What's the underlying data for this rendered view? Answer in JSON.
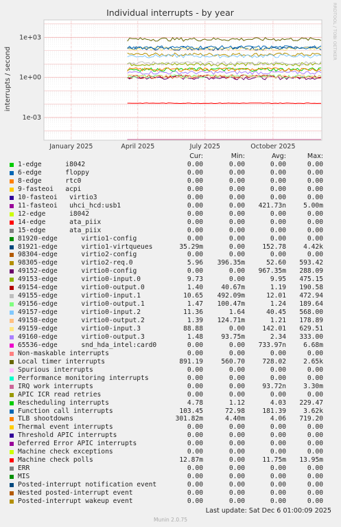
{
  "chart_data": {
    "type": "line",
    "title": "Individual interrupts - by year",
    "ylabel": "interrupts / second",
    "yscale": "log",
    "ylim": [
      2e-05,
      20000
    ],
    "yticks": [
      "1e-03",
      "1e+00",
      "1e+03"
    ],
    "ytick_values": [
      0.001,
      1,
      1000
    ],
    "xticks": [
      "January 2025",
      "April 2025",
      "July 2025",
      "October 2025"
    ],
    "xtick_positions": [
      "2025-01-01",
      "2025-04-01",
      "2025-07-01",
      "2025-10-01"
    ],
    "xlim": [
      "2024-11-25",
      "2025-12-06"
    ],
    "data_start": "2025-03-18",
    "grid": true,
    "legend_position": "bottom"
  },
  "legend_header": {
    "cur": "Cur:",
    "min": "Min:",
    "avg": "Avg:",
    "max": "Max:"
  },
  "series": [
    {
      "name": "1-edge      i8042",
      "color": "#00cc00",
      "cur": "0.00",
      "min": "0.00",
      "avg": "0.00",
      "max": "0.00"
    },
    {
      "name": "6-edge      floppy",
      "color": "#0066b3",
      "cur": "0.00",
      "min": "0.00",
      "avg": "0.00",
      "max": "0.00"
    },
    {
      "name": "8-edge      rtc0",
      "color": "#ff8000",
      "cur": "0.00",
      "min": "0.00",
      "avg": "0.00",
      "max": "0.00"
    },
    {
      "name": "9-fasteoi   acpi",
      "color": "#ffcc00",
      "cur": "0.00",
      "min": "0.00",
      "avg": "0.00",
      "max": "0.00"
    },
    {
      "name": "10-fasteoi   virtio3",
      "color": "#330099",
      "cur": "0.00",
      "min": "0.00",
      "avg": "0.00",
      "max": "0.00"
    },
    {
      "name": "11-fasteoi   uhci_hcd:usb1",
      "color": "#990099",
      "cur": "0.00",
      "min": "0.00",
      "avg": "421.73n",
      "max": "5.00m"
    },
    {
      "name": "12-edge      i8042",
      "color": "#ccff00",
      "cur": "0.00",
      "min": "0.00",
      "avg": "0.00",
      "max": "0.00"
    },
    {
      "name": "14-edge      ata_piix",
      "color": "#ff0000",
      "cur": "0.00",
      "min": "0.00",
      "avg": "0.00",
      "max": "0.00"
    },
    {
      "name": "15-edge      ata_piix",
      "color": "#808080",
      "cur": "0.00",
      "min": "0.00",
      "avg": "0.00",
      "max": "0.00"
    },
    {
      "name": "81920-edge      virtio1-config",
      "color": "#008f00",
      "cur": "0.00",
      "min": "0.00",
      "avg": "0.00",
      "max": "0.00"
    },
    {
      "name": "81921-edge      virtio1-virtqueues",
      "color": "#00487d",
      "cur": "35.29m",
      "min": "0.00",
      "avg": "152.78",
      "max": "4.42k"
    },
    {
      "name": "98304-edge      virtio2-config",
      "color": "#b35a00",
      "cur": "0.00",
      "min": "0.00",
      "avg": "0.00",
      "max": "0.00"
    },
    {
      "name": "98305-edge      virtio2-req.0",
      "color": "#b38f00",
      "cur": "5.96",
      "min": "396.35m",
      "avg": "52.60",
      "max": "593.42"
    },
    {
      "name": "49152-edge      virtio0-config",
      "color": "#6b006b",
      "cur": "0.00",
      "min": "0.00",
      "avg": "967.35m",
      "max": "288.09"
    },
    {
      "name": "49153-edge      virtio0-input.0",
      "color": "#8fb300",
      "cur": "9.73",
      "min": "0.00",
      "avg": "9.95",
      "max": "475.15"
    },
    {
      "name": "49154-edge      virtio0-output.0",
      "color": "#b30000",
      "cur": "1.40",
      "min": "40.67m",
      "avg": "1.19",
      "max": "190.58"
    },
    {
      "name": "49155-edge      virtio0-input.1",
      "color": "#bebebe",
      "cur": "10.65",
      "min": "492.09m",
      "avg": "12.01",
      "max": "472.94"
    },
    {
      "name": "49156-edge      virtio0-output.1",
      "color": "#80ff80",
      "cur": "1.47",
      "min": "100.47m",
      "avg": "1.24",
      "max": "189.64"
    },
    {
      "name": "49157-edge      virtio0-input.2",
      "color": "#80c9ff",
      "cur": "11.36",
      "min": "1.64",
      "avg": "40.45",
      "max": "568.00"
    },
    {
      "name": "49158-edge      virtio0-output.2",
      "color": "#ffc080",
      "cur": "1.39",
      "min": "124.71m",
      "avg": "1.21",
      "max": "178.89"
    },
    {
      "name": "49159-edge      virtio0-input.3",
      "color": "#ffe680",
      "cur": "88.88",
      "min": "0.00",
      "avg": "142.01",
      "max": "629.51"
    },
    {
      "name": "49160-edge      virtio0-output.3",
      "color": "#aa80ff",
      "cur": "1.48",
      "min": "93.75m",
      "avg": "2.34",
      "max": "333.00"
    },
    {
      "name": "65536-edge      snd_hda_intel:card0",
      "color": "#ee00cc",
      "cur": "0.00",
      "min": "0.00",
      "avg": "733.97n",
      "max": "6.68m"
    },
    {
      "name": "Non-maskable interrupts",
      "color": "#ff8080",
      "cur": "0.00",
      "min": "0.00",
      "avg": "0.00",
      "max": "0.00"
    },
    {
      "name": "Local timer interrupts",
      "color": "#666600",
      "cur": "891.19",
      "min": "560.70",
      "avg": "728.02",
      "max": "2.65k"
    },
    {
      "name": "Spurious interrupts",
      "color": "#ffbfff",
      "cur": "0.00",
      "min": "0.00",
      "avg": "0.00",
      "max": "0.00"
    },
    {
      "name": "Performance monitoring interrupts",
      "color": "#00ffcc",
      "cur": "0.00",
      "min": "0.00",
      "avg": "0.00",
      "max": "0.00"
    },
    {
      "name": "IRQ work interrupts",
      "color": "#cc6699",
      "cur": "0.00",
      "min": "0.00",
      "avg": "93.72n",
      "max": "3.30m"
    },
    {
      "name": "APIC ICR read retries",
      "color": "#999900",
      "cur": "0.00",
      "min": "0.00",
      "avg": "0.00",
      "max": "0.00"
    },
    {
      "name": "Rescheduling interrupts",
      "color": "#00cc00",
      "cur": "4.78",
      "min": "1.12",
      "avg": "4.03",
      "max": "229.47"
    },
    {
      "name": "Function call interrupts",
      "color": "#0066b3",
      "cur": "103.45",
      "min": "72.98",
      "avg": "181.39",
      "max": "3.62k"
    },
    {
      "name": "TLB shootdowns",
      "color": "#ff8000",
      "cur": "301.82m",
      "min": "4.40m",
      "avg": "4.06",
      "max": "719.20"
    },
    {
      "name": "Thermal event interrupts",
      "color": "#ffcc00",
      "cur": "0.00",
      "min": "0.00",
      "avg": "0.00",
      "max": "0.00"
    },
    {
      "name": "Threshold APIC interrupts",
      "color": "#330099",
      "cur": "0.00",
      "min": "0.00",
      "avg": "0.00",
      "max": "0.00"
    },
    {
      "name": "Deferred Error APIC interrupts",
      "color": "#990099",
      "cur": "0.00",
      "min": "0.00",
      "avg": "0.00",
      "max": "0.00"
    },
    {
      "name": "Machine check exceptions",
      "color": "#ccff00",
      "cur": "0.00",
      "min": "0.00",
      "avg": "0.00",
      "max": "0.00"
    },
    {
      "name": "Machine check polls",
      "color": "#ff0000",
      "cur": "12.87m",
      "min": "0.00",
      "avg": "11.75m",
      "max": "13.95m"
    },
    {
      "name": "ERR",
      "color": "#808080",
      "cur": "0.00",
      "min": "0.00",
      "avg": "0.00",
      "max": "0.00"
    },
    {
      "name": "MIS",
      "color": "#008f00",
      "cur": "0.00",
      "min": "0.00",
      "avg": "0.00",
      "max": "0.00"
    },
    {
      "name": "Posted-interrupt notification event",
      "color": "#00487d",
      "cur": "0.00",
      "min": "0.00",
      "avg": "0.00",
      "max": "0.00"
    },
    {
      "name": "Nested posted-interrupt event",
      "color": "#b35a00",
      "cur": "0.00",
      "min": "0.00",
      "avg": "0.00",
      "max": "0.00"
    },
    {
      "name": "Posted-interrupt wakeup event",
      "color": "#b38f00",
      "cur": "0.00",
      "min": "0.00",
      "avg": "0.00",
      "max": "0.00"
    }
  ],
  "footer": {
    "last_update": "Last update: Sat Dec  6 01:00:09 2025",
    "munin": "Munin 2.0.75",
    "side_label": "RRDTOOL / TOBI OETIKER"
  }
}
